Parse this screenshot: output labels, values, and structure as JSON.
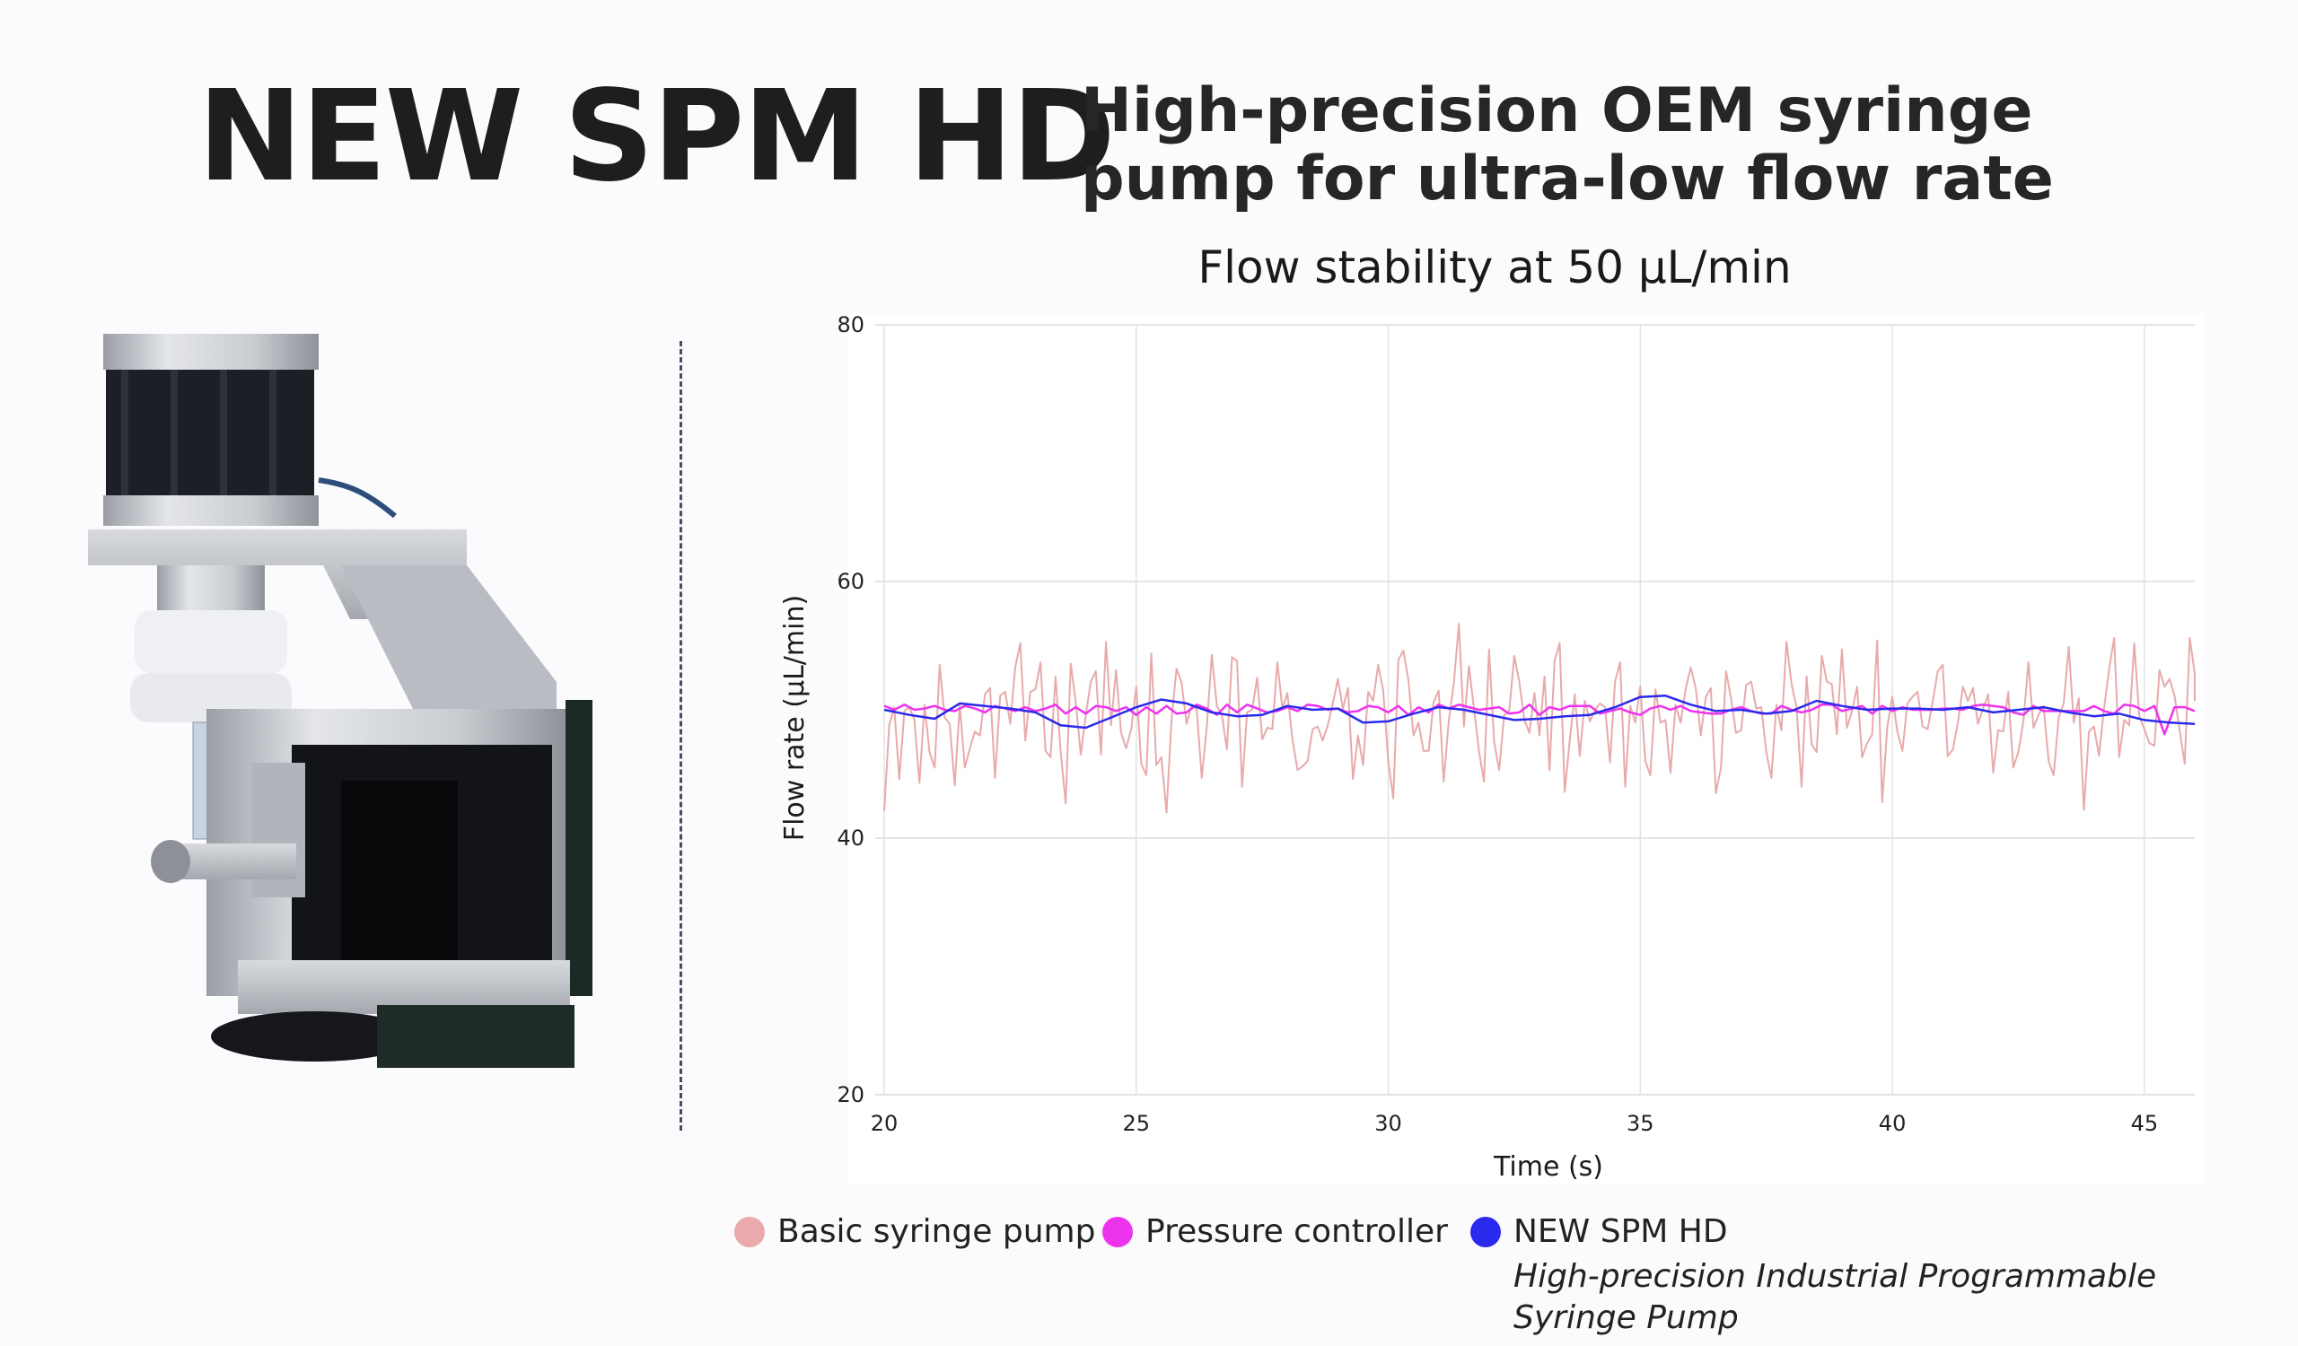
{
  "header": {
    "title": "NEW SPM HD",
    "subtitle_line1": "High-precision OEM syringe",
    "subtitle_line2": "pump for ultra-low flow rate"
  },
  "chart_data": {
    "type": "line",
    "title": "Flow stability at 50 µL/min",
    "xlabel": "Time (s)",
    "ylabel": "Flow rate (µL/min)",
    "xlim": [
      20,
      46
    ],
    "ylim": [
      20,
      80
    ],
    "x_ticks": [
      20,
      25,
      30,
      35,
      40,
      45
    ],
    "y_ticks": [
      20,
      40,
      60,
      80
    ],
    "grid": true,
    "legend_position": "bottom",
    "series": [
      {
        "name": "Basic syringe pump",
        "color": "#e8aaab",
        "x_start": 20,
        "x_step": 0.1,
        "y": [
          42.1,
          48.8,
          50.2,
          44.6,
          49.9,
          50.2,
          49.2,
          44.3,
          50.4,
          46.7,
          45.5,
          53.5,
          49.4,
          48.9,
          44.1,
          50.4,
          45.5,
          47.0,
          48.3,
          48.0,
          51.2,
          51.7,
          44.7,
          51.1,
          51.4,
          48.9,
          53.3,
          55.2,
          47.6,
          51.4,
          51.6,
          53.7,
          46.8,
          46.3,
          52.6,
          46.8,
          42.7,
          53.6,
          50.6,
          46.5,
          49.6,
          52.2,
          53.0,
          46.5,
          55.3,
          48.8,
          53.1,
          48.2,
          47.0,
          48.5,
          51.8,
          45.8,
          44.9,
          54.4,
          45.7,
          46.3,
          42.0,
          49.2,
          53.2,
          52.1,
          48.9,
          50.4,
          50.0,
          44.7,
          48.7,
          54.3,
          50.3,
          49.6,
          46.9,
          54.1,
          53.8,
          44.0,
          49.8,
          50.0,
          52.5,
          47.7,
          48.6,
          48.5,
          53.7,
          50.1,
          51.3,
          47.7,
          45.3,
          45.6,
          46.0,
          48.5,
          48.7,
          47.6,
          48.8,
          50.5,
          52.4,
          50.1,
          51.7,
          44.6,
          48.0,
          45.7,
          51.4,
          50.7,
          53.5,
          51.5,
          46.0,
          43.1,
          53.9,
          54.6,
          52.3,
          48.0,
          49.0,
          46.8,
          46.8,
          50.6,
          51.5,
          44.4,
          49.1,
          52.0,
          56.7,
          48.7,
          53.4,
          50.1,
          46.8,
          44.4,
          54.7,
          47.5,
          45.3,
          49.6,
          49.9,
          54.2,
          52.2,
          49.2,
          48.2,
          51.3,
          48.0,
          52.6,
          45.3,
          53.8,
          55.2,
          43.6,
          47.6,
          51.2,
          46.4,
          50.7,
          49.1,
          50.0,
          50.5,
          50.2,
          45.9,
          52.2,
          53.7,
          44.0,
          50.3,
          49.0,
          51.8,
          46.0,
          44.9,
          51.6,
          49.0,
          49.2,
          45.1,
          50.4,
          49.0,
          51.6,
          53.3,
          51.7,
          48.0,
          51.0,
          51.7,
          43.5,
          45.5,
          53.0,
          50.9,
          48.2,
          48.4,
          51.9,
          52.2,
          50.1,
          50.2,
          46.7,
          44.7,
          50.4,
          48.4,
          55.3,
          52.0,
          50.2,
          44.0,
          52.6,
          47.3,
          46.7,
          54.2,
          52.2,
          52.0,
          48.1,
          54.7,
          48.6,
          49.9,
          51.8,
          46.3,
          47.4,
          48.1,
          55.4,
          42.8,
          48.7,
          51.0,
          48.3,
          46.8,
          50.5,
          51.0,
          51.4,
          48.7,
          48.5,
          50.6,
          53.0,
          53.5,
          46.4,
          46.9,
          49.0,
          51.8,
          50.7,
          51.7,
          48.9,
          50.1,
          51.2,
          45.1,
          48.4,
          48.3,
          51.4,
          45.5,
          46.7,
          49.1,
          53.7,
          48.6,
          49.6,
          50.3,
          46.0,
          44.9,
          49.4,
          50.5,
          54.9,
          49.0,
          50.9,
          42.2,
          48.3,
          48.7,
          46.4,
          50.1,
          53.1,
          55.6,
          46.3,
          49.2,
          48.8,
          55.2,
          49.5,
          48.5,
          47.4,
          47.2,
          53.1,
          51.8,
          52.4,
          51.1,
          48.4,
          45.8,
          55.6,
          52.8,
          50.7
        ]
      },
      {
        "name": "Pressure controller",
        "color": "#ee33ee",
        "x_start": 20,
        "x_step": 0.2,
        "y": [
          50.3,
          50.0,
          50.4,
          50.0,
          50.1,
          50.3,
          50.0,
          49.9,
          50.3,
          50.1,
          49.8,
          50.3,
          50.1,
          49.9,
          50.2,
          49.9,
          50.1,
          50.4,
          49.7,
          50.2,
          49.7,
          50.3,
          50.2,
          49.9,
          50.2,
          49.6,
          50.2,
          49.7,
          50.3,
          49.7,
          49.8,
          50.4,
          50.1,
          49.6,
          50.4,
          49.8,
          50.4,
          50.1,
          49.8,
          49.9,
          50.2,
          49.9,
          50.4,
          50.3,
          50.0,
          50.1,
          49.8,
          49.9,
          50.3,
          50.2,
          49.8,
          50.3,
          49.6,
          50.2,
          49.8,
          50.4,
          50.1,
          50.4,
          50.2,
          50.0,
          50.1,
          50.2,
          49.7,
          49.8,
          50.4,
          49.6,
          50.2,
          50.0,
          50.3,
          50.3,
          50.3,
          49.7,
          49.9,
          50.1,
          49.8,
          49.6,
          50.1,
          50.3,
          50.0,
          50.3,
          49.9,
          49.8,
          49.7,
          49.7,
          50.0,
          50.2,
          49.9,
          49.7,
          49.7,
          50.3,
          50.0,
          49.8,
          50.0,
          50.4,
          50.4,
          49.9,
          50.1,
          50.3,
          49.7,
          50.3,
          49.9,
          50.2,
          50.0,
          50.0,
          50.0,
          50.1,
          50.1,
          50.0,
          50.3,
          50.4,
          50.3,
          50.2,
          49.8,
          49.6,
          50.3,
          49.9,
          49.9,
          49.9,
          49.9,
          49.9,
          50.3,
          49.9,
          49.7,
          50.4,
          50.3,
          49.9,
          50.3,
          48.1,
          50.2,
          50.2,
          49.9
        ]
      },
      {
        "name": "NEW SPM HD",
        "description": "High-precision Industrial Programmable Syringe Pump",
        "color": "#2a2aee",
        "x_start": 20,
        "x_step": 0.5,
        "y": [
          50.0,
          49.6,
          49.3,
          50.5,
          50.3,
          50.1,
          49.8,
          48.8,
          48.6,
          49.4,
          50.2,
          50.8,
          50.5,
          49.8,
          49.5,
          49.6,
          50.3,
          50.0,
          50.1,
          49.0,
          49.1,
          49.7,
          50.2,
          50.0,
          49.6,
          49.2,
          49.3,
          49.5,
          49.6,
          50.2,
          51.0,
          51.1,
          50.4,
          49.9,
          50.0,
          49.7,
          49.9,
          50.7,
          50.3,
          50.0,
          50.1,
          50.1,
          50.0,
          50.2,
          49.8,
          50.0,
          50.2,
          49.8,
          49.5,
          49.7,
          49.2,
          49.0,
          48.9
        ]
      }
    ]
  }
}
